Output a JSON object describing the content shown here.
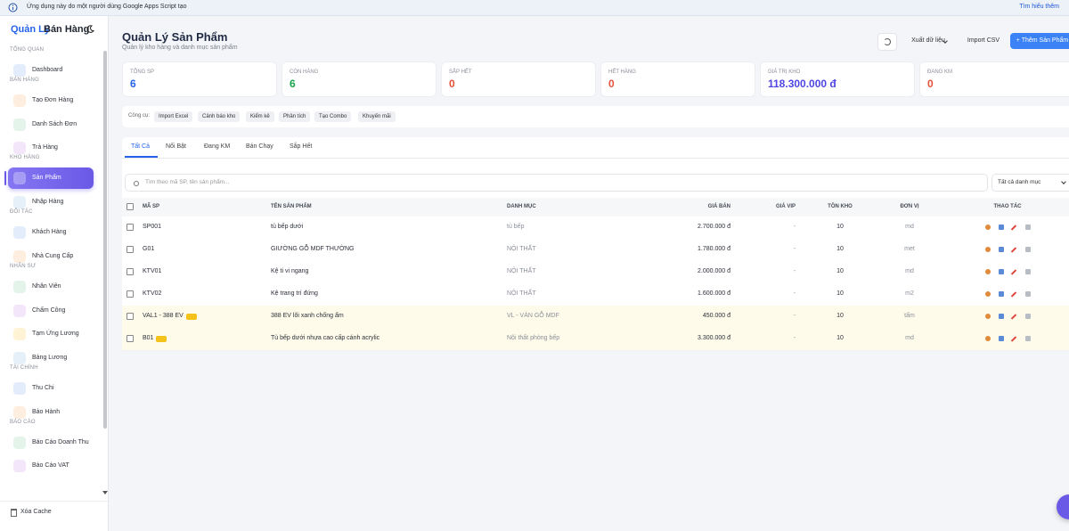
{
  "banner": {
    "text": "Ứng dụng này do một người dùng Google Apps Script tạo",
    "link": "Tìm hiểu thêm"
  },
  "sidebar": {
    "brand": [
      "Quản Lý",
      "Bán Hàng"
    ],
    "sections": [
      {
        "label": "TỔNG QUAN",
        "items": [
          {
            "label": "Dashboard"
          }
        ]
      },
      {
        "label": "BÁN HÀNG",
        "items": [
          {
            "label": "Tạo Đơn Hàng"
          },
          {
            "label": "Danh Sách Đơn"
          },
          {
            "label": "Trả Hàng"
          }
        ]
      },
      {
        "label": "KHO HÀNG",
        "items": [
          {
            "label": "Sản Phẩm",
            "active": true
          },
          {
            "label": "Nhập Hàng"
          }
        ]
      },
      {
        "label": "ĐỐI TÁC",
        "items": [
          {
            "label": "Khách Hàng"
          },
          {
            "label": "Nhà Cung Cấp"
          }
        ]
      },
      {
        "label": "NHÂN SỰ",
        "items": [
          {
            "label": "Nhân Viên"
          },
          {
            "label": "Chấm Công"
          },
          {
            "label": "Tạm Ứng Lương"
          },
          {
            "label": "Bảng Lương"
          }
        ]
      },
      {
        "label": "TÀI CHÍNH",
        "items": [
          {
            "label": "Thu Chi"
          },
          {
            "label": "Bảo Hành"
          }
        ]
      },
      {
        "label": "BÁO CÁO",
        "items": [
          {
            "label": "Báo Cáo Doanh Thu"
          },
          {
            "label": "Báo Cáo VAT"
          }
        ]
      }
    ],
    "footer": "Xóa Cache"
  },
  "header": {
    "title": "Quản Lý Sản Phẩm",
    "subtitle": "Quản lý kho hàng và danh mục sản phẩm",
    "buttons": [
      "Xuất dữ liệu",
      "Import CSV",
      "+ Thêm Sản Phẩm"
    ]
  },
  "stats": [
    {
      "label": "TỔNG SP",
      "value": "6",
      "color": "#2563eb"
    },
    {
      "label": "CÒN HÀNG",
      "value": "6",
      "color": "#16a34a"
    },
    {
      "label": "SẮP HẾT",
      "value": "0",
      "color": "#e8503a"
    },
    {
      "label": "HẾT HÀNG",
      "value": "0",
      "color": "#e8503a"
    },
    {
      "label": "GIÁ TRỊ KHO",
      "value": "118.300.000 đ",
      "color": "#4f46e5"
    },
    {
      "label": "ĐANG KM",
      "value": "0",
      "color": "#e8503a"
    }
  ],
  "tools": {
    "label": "Công cụ:",
    "items": [
      "Import Excel",
      "Cảnh báo kho",
      "Kiểm kê",
      "Phân tích",
      "Tạo Combo",
      "Khuyến mãi"
    ]
  },
  "tabs": [
    "Tất Cả",
    "Nổi Bật",
    "Đang KM",
    "Bán Chạy",
    "Sắp Hết"
  ],
  "search": {
    "placeholder": "Tìm theo mã SP, tên sản phẩm...",
    "filter": "Tất cả danh mục"
  },
  "table": {
    "columns": [
      "MÃ SP",
      "TÊN SẢN PHẨM",
      "DANH MỤC",
      "GIÁ BÁN",
      "GIÁ VIP",
      "TỒN KHO",
      "ĐƠN VỊ",
      "THAO TÁC"
    ],
    "rows": [
      {
        "cells": [
          "SP001",
          "tủ bếp dưới",
          "tủ bếp",
          "2.700.000 đ",
          "-",
          "10",
          "md"
        ]
      },
      {
        "cells": [
          "G01",
          "GIƯỜNG GỖ MDF THƯỜNG",
          "NỘI THẤT",
          "1.780.000 đ",
          "-",
          "10",
          "met"
        ]
      },
      {
        "cells": [
          "KTV01",
          "Kệ ti vi ngang",
          "NỘI THẤT",
          "2.000.000 đ",
          "-",
          "10",
          "md"
        ]
      },
      {
        "cells": [
          "KTV02",
          "Kệ trang trí đứng",
          "NỘI THẤT",
          "1.600.000 đ",
          "-",
          "10",
          "m2"
        ]
      },
      {
        "cells": [
          "VAL1 - 388 EV",
          "388 EV lõi xanh chống ẩm",
          "VL - VÁN GỖ MDF",
          "450.000 đ",
          "-",
          "10",
          "tấm"
        ],
        "highlighted": true
      },
      {
        "cells": [
          "B01",
          "Tủ bếp dưới nhựa cao cấp cánh acrylic",
          "Nội thất phòng bếp",
          "3.300.000 đ",
          "-",
          "10",
          "md"
        ],
        "highlighted": true
      }
    ]
  }
}
